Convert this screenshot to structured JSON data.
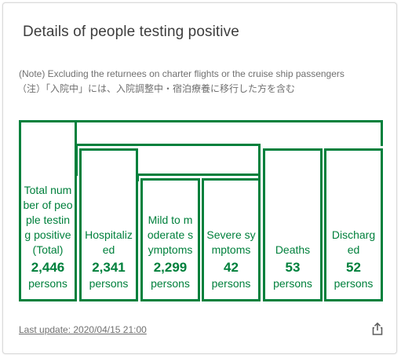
{
  "card": {
    "title": "Details of people testing positive",
    "note_en": "(Note) Excluding the returnees on charter flights or the cruise ship passengers",
    "note_ja": "（注）「入院中」には、入院調整中・宿泊療養に移行した方を含む",
    "last_update": "Last update: 2020/04/15 21:00",
    "share_icon": "share-icon"
  },
  "boxes": {
    "total": {
      "label": "Total num ber of peo ple testin g positive (Total)",
      "value": "2,446",
      "unit": "persons"
    },
    "hospitalized": {
      "label": "Hospitaliz ed",
      "value": "2,341",
      "unit": "persons"
    },
    "mild": {
      "label": "Mild to m oderate s ymptoms",
      "value": "2,299",
      "unit": "persons"
    },
    "severe": {
      "label": "Severe sy mptoms",
      "value": "42",
      "unit": "persons"
    },
    "deaths": {
      "label": "Deaths",
      "value": "53",
      "unit": "persons"
    },
    "discharged": {
      "label": "Discharg ed",
      "value": "52",
      "unit": "persons"
    }
  },
  "colors": {
    "accent": "#00803c",
    "text": "#3d3d3d",
    "muted": "#707070"
  }
}
